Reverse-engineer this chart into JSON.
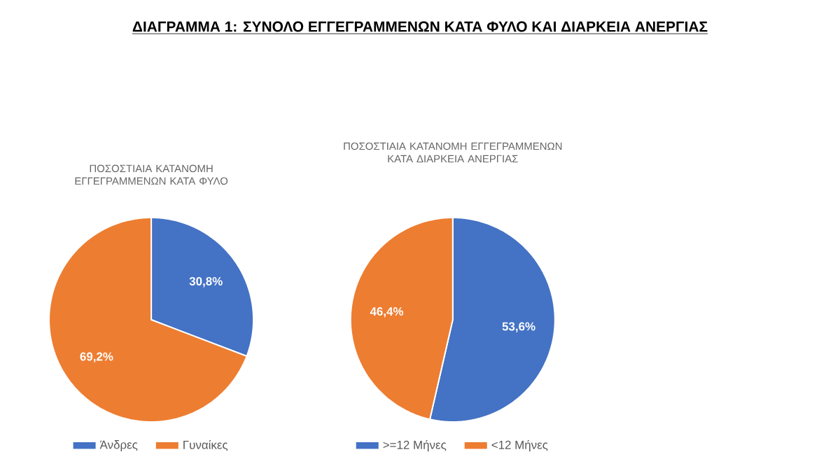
{
  "chart_data": [
    {
      "type": "pie",
      "title": "ΔΙΑΓΡΑΜΜΑ 1: ΣΥΝΟΛΟ ΕΓΓΕΓΡΑΜΜΕΝΩΝ ΚΑΤΑ ΦΥΛΟ ΚΑΙ ΔΙΑΡΚΕΙΑ ΑΝΕΡΓΙΑΣ",
      "subtitle": "ΠΟΣΟΣΤΙΑΙΑ ΚΑΤΑΝΟΜΗ ΕΓΓΕΓΡΑΜΜΕΝΩΝ ΚΑΤΑ ΦΥΛΟ",
      "categories": [
        "Άνδρες",
        "Γυναίκες"
      ],
      "values": [
        30.8,
        69.2
      ],
      "value_labels": [
        "30,8%",
        "69,2%"
      ],
      "colors": [
        "#4472c4",
        "#ed7d31"
      ],
      "legend": "bottom"
    },
    {
      "type": "pie",
      "title": "ΠΟΣΟΣΤΙΑΙΑ ΚΑΤΑΝΟΜΗ ΕΓΓΕΓΡΑΜΜΕΝΩΝ ΚΑΤΑ ΔΙΑΡΚΕΙΑ ΑΝΕΡΓΙΑΣ",
      "categories": [
        ">=12 Μήνες",
        "<12 Μήνες"
      ],
      "values": [
        53.6,
        46.4
      ],
      "value_labels": [
        "53,6%",
        "46,4%"
      ],
      "colors": [
        "#4472c4",
        "#ed7d31"
      ],
      "legend": "bottom"
    }
  ]
}
